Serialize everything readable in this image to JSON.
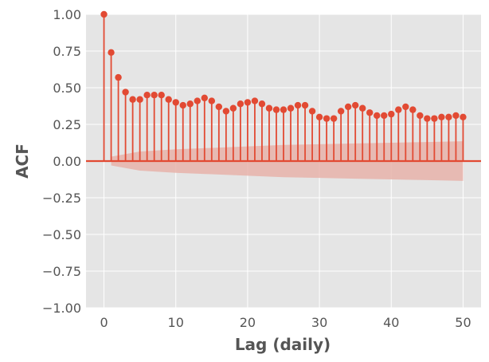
{
  "chart_data": {
    "type": "stem",
    "xlabel": "Lag (daily)",
    "ylabel": "ACF",
    "xlim": [
      -2.5,
      52.5
    ],
    "ylim": [
      -1.0,
      1.0
    ],
    "x_ticks": [
      0,
      10,
      20,
      30,
      40,
      50
    ],
    "x_tick_labels": [
      "0",
      "10",
      "20",
      "30",
      "40",
      "50"
    ],
    "y_ticks": [
      -1.0,
      -0.75,
      -0.5,
      -0.25,
      0.0,
      0.25,
      0.5,
      0.75,
      1.0
    ],
    "y_tick_labels": [
      "−1.00",
      "−0.75",
      "−0.50",
      "−0.25",
      "0.00",
      "0.25",
      "0.50",
      "0.75",
      "1.00"
    ],
    "grid": true,
    "lags": [
      0,
      1,
      2,
      3,
      4,
      5,
      6,
      7,
      8,
      9,
      10,
      11,
      12,
      13,
      14,
      15,
      16,
      17,
      18,
      19,
      20,
      21,
      22,
      23,
      24,
      25,
      26,
      27,
      28,
      29,
      30,
      31,
      32,
      33,
      34,
      35,
      36,
      37,
      38,
      39,
      40,
      41,
      42,
      43,
      44,
      45,
      46,
      47,
      48,
      49,
      50
    ],
    "acf": [
      1.0,
      0.74,
      0.57,
      0.47,
      0.42,
      0.42,
      0.45,
      0.45,
      0.45,
      0.42,
      0.4,
      0.38,
      0.39,
      0.41,
      0.43,
      0.41,
      0.37,
      0.34,
      0.36,
      0.39,
      0.4,
      0.41,
      0.39,
      0.36,
      0.35,
      0.35,
      0.36,
      0.38,
      0.38,
      0.34,
      0.3,
      0.29,
      0.29,
      0.34,
      0.37,
      0.38,
      0.36,
      0.33,
      0.31,
      0.31,
      0.32,
      0.35,
      0.37,
      0.35,
      0.31,
      0.29,
      0.29,
      0.3,
      0.3,
      0.31,
      0.3
    ],
    "confidence_band": {
      "lags": [
        1,
        5,
        10,
        15,
        20,
        25,
        30,
        35,
        40,
        45,
        50
      ],
      "upper": [
        0.03,
        0.065,
        0.08,
        0.09,
        0.1,
        0.11,
        0.115,
        0.12,
        0.125,
        0.13,
        0.135
      ],
      "lower": [
        -0.03,
        -0.065,
        -0.08,
        -0.09,
        -0.1,
        -0.11,
        -0.115,
        -0.12,
        -0.125,
        -0.13,
        -0.135
      ]
    },
    "colors": {
      "stem": "#E24A33",
      "band": "#E8B3AA",
      "plot_background": "#E5E5E5",
      "grid": "#FFFFFF",
      "text": "#555555"
    }
  }
}
